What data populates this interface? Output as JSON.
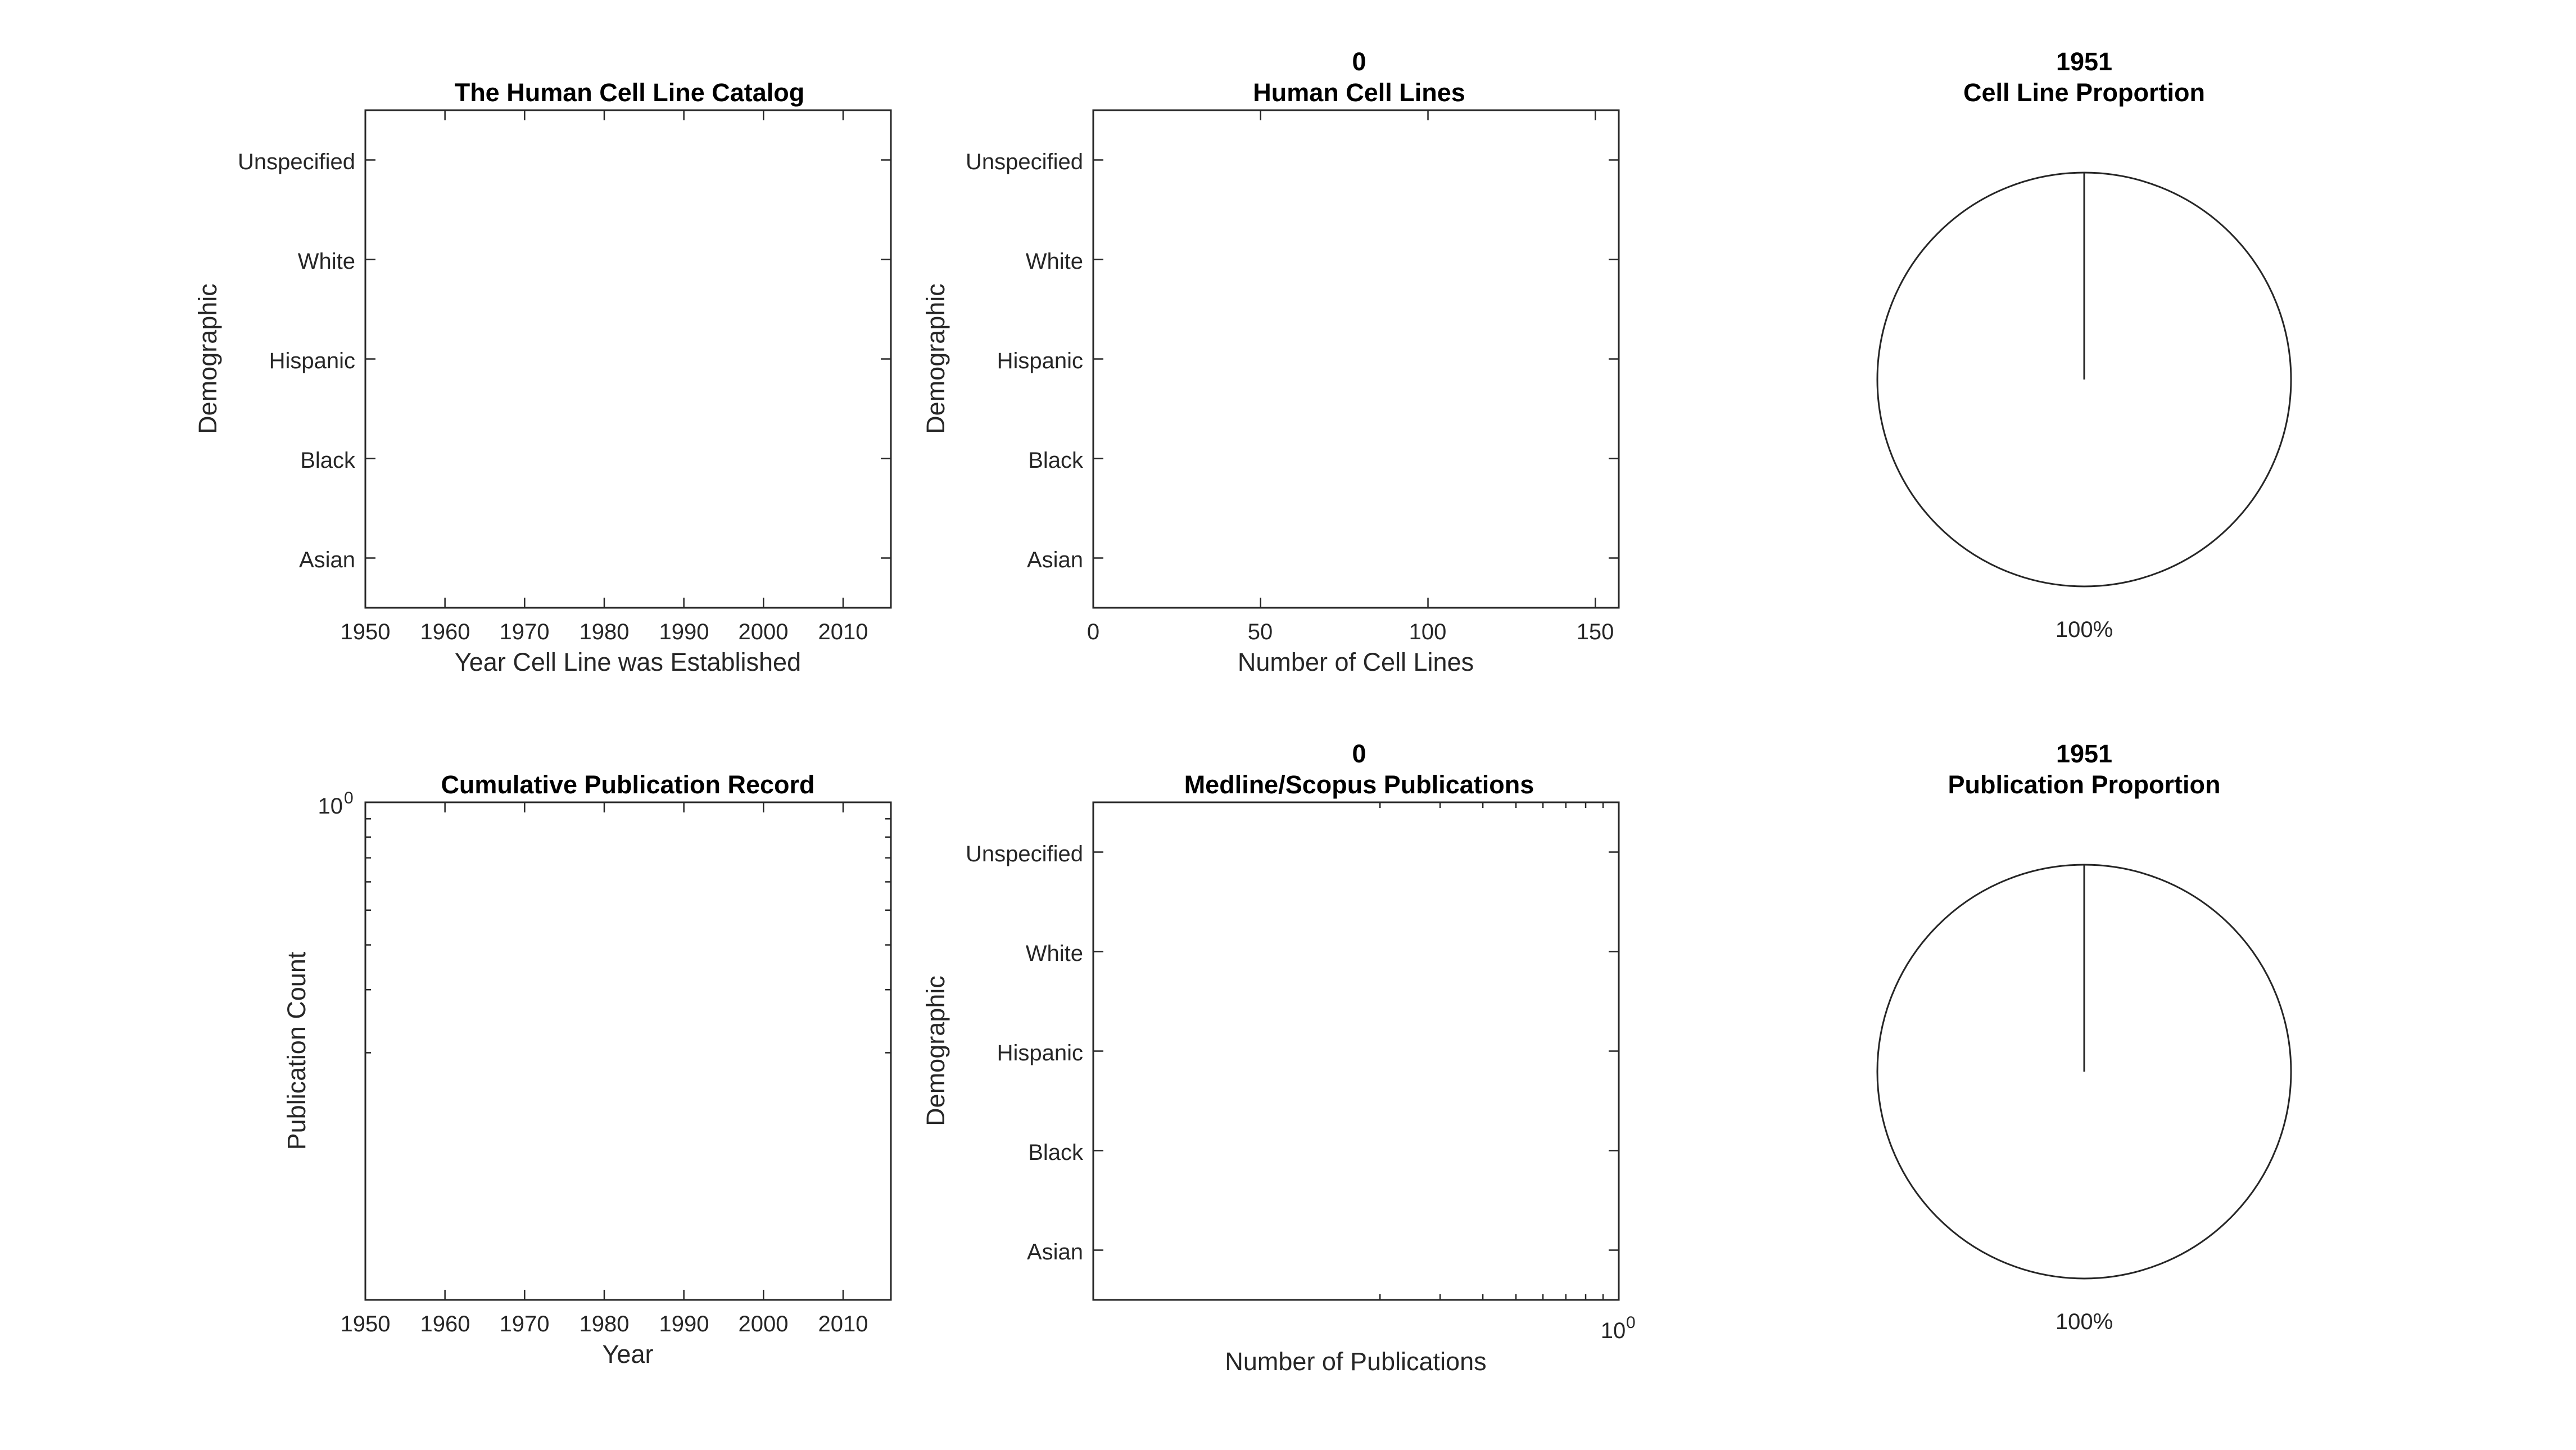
{
  "colors": {
    "axis": "#262626",
    "title": "#000000",
    "background": "#ffffff"
  },
  "chart_data": [
    {
      "type": "scatter",
      "title": "The Human Cell Line Catalog",
      "xlabel": "Year Cell Line was Established",
      "ylabel": "Demographic",
      "xlim": [
        1950,
        2016
      ],
      "xticks": [
        "1950",
        "1960",
        "1970",
        "1980",
        "1990",
        "2000",
        "2010"
      ],
      "categories": [
        "Asian",
        "Black",
        "Hispanic",
        "White",
        "Unspecified"
      ],
      "series": [],
      "grid": false
    },
    {
      "type": "bar",
      "orientation": "horizontal",
      "title_line1": "0",
      "title": "Human Cell Lines",
      "xlabel": "Number of Cell Lines",
      "ylabel": "Demographic",
      "xlim": [
        0,
        157
      ],
      "xticks": [
        "0",
        "50",
        "100",
        "150"
      ],
      "categories": [
        "Asian",
        "Black",
        "Hispanic",
        "White",
        "Unspecified"
      ],
      "values": [
        0,
        0,
        0,
        0,
        0
      ],
      "grid": false
    },
    {
      "type": "pie",
      "title_line1": "1951",
      "title": "Cell Line Proportion",
      "slices": [
        {
          "value": 100,
          "label": "100%"
        }
      ]
    },
    {
      "type": "line",
      "title": "Cumulative Publication Record",
      "xlabel": "Year",
      "ylabel": "Publication Count",
      "xlim": [
        1950,
        2016
      ],
      "xticks": [
        "1950",
        "1960",
        "1970",
        "1980",
        "1990",
        "2000",
        "2010"
      ],
      "yscale": "log",
      "ytick_label": {
        "base": "10",
        "exponent": "0"
      },
      "series": [],
      "grid": false
    },
    {
      "type": "bar",
      "orientation": "horizontal",
      "xscale": "log",
      "title_line1": "0",
      "title": "Medline/Scopus Publications",
      "xlabel": "Number of Publications",
      "ylabel": "Demographic",
      "xtick_label": {
        "base": "10",
        "exponent": "0"
      },
      "categories": [
        "Asian",
        "Black",
        "Hispanic",
        "White",
        "Unspecified"
      ],
      "values": [
        0,
        0,
        0,
        0,
        0
      ],
      "grid": false
    },
    {
      "type": "pie",
      "title_line1": "1951",
      "title": "Publication Proportion",
      "slices": [
        {
          "value": 100,
          "label": "100%"
        }
      ]
    }
  ]
}
